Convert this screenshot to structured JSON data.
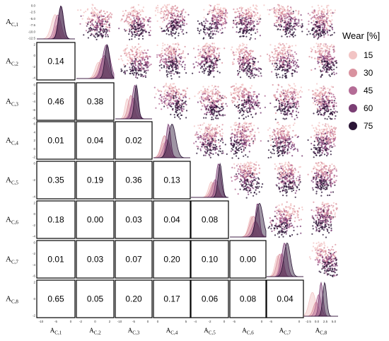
{
  "chart_data": {
    "type": "pairplot",
    "variables": [
      "A_C,1",
      "A_C,2",
      "A_C,3",
      "A_C,4",
      "A_C,5",
      "A_C,6",
      "A_C,7",
      "A_C,8"
    ],
    "variable_labels": [
      {
        "main": "A",
        "sub": "C,1"
      },
      {
        "main": "A",
        "sub": "C,2"
      },
      {
        "main": "A",
        "sub": "C,3"
      },
      {
        "main": "A",
        "sub": "C,4"
      },
      {
        "main": "A",
        "sub": "C,5"
      },
      {
        "main": "A",
        "sub": "C,6"
      },
      {
        "main": "A",
        "sub": "C,7"
      },
      {
        "main": "A",
        "sub": "C,8"
      }
    ],
    "lower_triangle_correlations": [
      {
        "row": 1,
        "col": 0,
        "value": "0.14"
      },
      {
        "row": 2,
        "col": 0,
        "value": "0.46"
      },
      {
        "row": 2,
        "col": 1,
        "value": "0.38"
      },
      {
        "row": 3,
        "col": 0,
        "value": "0.01"
      },
      {
        "row": 3,
        "col": 1,
        "value": "0.04"
      },
      {
        "row": 3,
        "col": 2,
        "value": "0.02"
      },
      {
        "row": 4,
        "col": 0,
        "value": "0.35"
      },
      {
        "row": 4,
        "col": 1,
        "value": "0.19"
      },
      {
        "row": 4,
        "col": 2,
        "value": "0.36"
      },
      {
        "row": 4,
        "col": 3,
        "value": "0.13"
      },
      {
        "row": 5,
        "col": 0,
        "value": "0.18"
      },
      {
        "row": 5,
        "col": 1,
        "value": "0.00"
      },
      {
        "row": 5,
        "col": 2,
        "value": "0.03"
      },
      {
        "row": 5,
        "col": 3,
        "value": "0.04"
      },
      {
        "row": 5,
        "col": 4,
        "value": "0.08"
      },
      {
        "row": 6,
        "col": 0,
        "value": "0.01"
      },
      {
        "row": 6,
        "col": 1,
        "value": "0.03"
      },
      {
        "row": 6,
        "col": 2,
        "value": "0.07"
      },
      {
        "row": 6,
        "col": 3,
        "value": "0.20"
      },
      {
        "row": 6,
        "col": 4,
        "value": "0.10"
      },
      {
        "row": 6,
        "col": 5,
        "value": "0.00"
      },
      {
        "row": 7,
        "col": 0,
        "value": "0.65"
      },
      {
        "row": 7,
        "col": 1,
        "value": "0.05"
      },
      {
        "row": 7,
        "col": 2,
        "value": "0.20"
      },
      {
        "row": 7,
        "col": 3,
        "value": "0.17"
      },
      {
        "row": 7,
        "col": 4,
        "value": "0.06"
      },
      {
        "row": 7,
        "col": 5,
        "value": "0.08"
      },
      {
        "row": 7,
        "col": 6,
        "value": "0.04"
      }
    ],
    "x_ticks": [
      [
        "-10",
        "-5",
        "0"
      ],
      [
        "-2",
        "0",
        "2"
      ],
      [
        "-10",
        "-5",
        "0"
      ],
      [
        "0",
        "5"
      ],
      [
        "-4",
        "-2",
        "0"
      ],
      [
        "-5",
        "0"
      ],
      [
        "-5",
        "0"
      ],
      [
        "-2.5",
        "0.0",
        "2.5",
        "5.0"
      ]
    ],
    "y_ticks": [
      [
        "0.0",
        "-2.5",
        "-5.0",
        "-7.5",
        "-10.0",
        "-12.5"
      ],
      [
        "2",
        "0",
        "-2",
        "-4"
      ],
      [
        "0",
        "-2",
        "-4",
        "-6",
        "-8"
      ],
      [
        "6",
        "4",
        "2",
        "0",
        "-2"
      ],
      [
        "0",
        "-2",
        "-4"
      ],
      [
        "2",
        "0",
        "-2",
        "-4"
      ],
      [
        "0",
        "-2",
        "-4",
        "-6"
      ],
      [
        "2",
        "0",
        "-2"
      ]
    ],
    "legend": {
      "title": "Wear [%]",
      "placement": "right",
      "entries": [
        {
          "label": "15",
          "color": "#f2c4c4"
        },
        {
          "label": "30",
          "color": "#d9929f"
        },
        {
          "label": "45",
          "color": "#b46c96"
        },
        {
          "label": "60",
          "color": "#7b3f74"
        },
        {
          "label": "75",
          "color": "#2b1536"
        }
      ]
    },
    "grid": false
  }
}
